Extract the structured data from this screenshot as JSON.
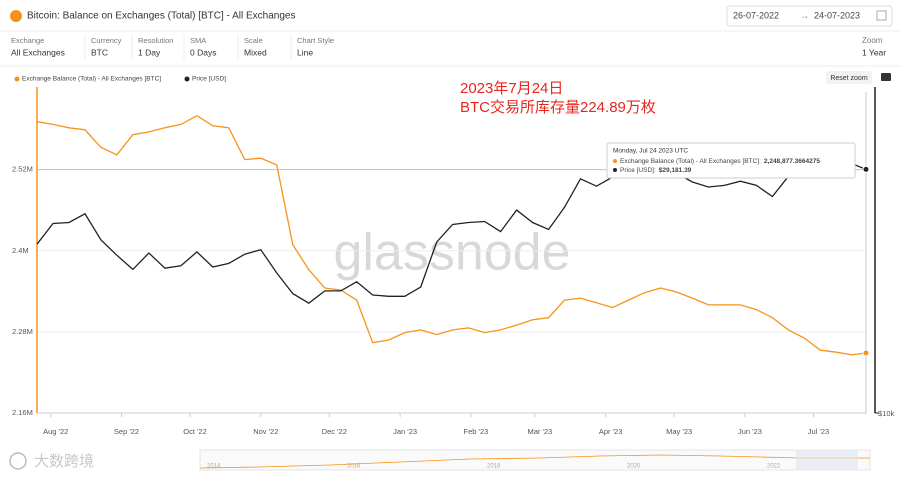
{
  "header": {
    "title": "Bitcoin: Balance on Exchanges (Total) [BTC] - All Exchanges",
    "date_from": "26-07-2022",
    "date_to": "24-07-2023"
  },
  "controls": [
    {
      "label": "Exchange",
      "value": "All Exchanges"
    },
    {
      "label": "Currency",
      "value": "BTC"
    },
    {
      "label": "Resolution",
      "value": "1 Day"
    },
    {
      "label": "SMA",
      "value": "0 Days"
    },
    {
      "label": "Scale",
      "value": "Mixed"
    },
    {
      "label": "Chart Style",
      "value": "Line"
    }
  ],
  "zoom": {
    "label": "Zoom",
    "value": "1 Year"
  },
  "reset_zoom": "Reset zoom",
  "watermark": "glassnode",
  "logo": "大数跨境",
  "navigator_years": [
    "2014",
    "2016",
    "2018",
    "2020",
    "2022"
  ],
  "chart_data": {
    "type": "line",
    "annotations": [
      "2023年7月24日",
      "BTC交易所库存量224.89万枚"
    ],
    "x": [
      "2022-07-26",
      "2022-08-02",
      "2022-08-09",
      "2022-08-16",
      "2022-08-23",
      "2022-08-30",
      "2022-09-06",
      "2022-09-13",
      "2022-09-20",
      "2022-09-27",
      "2022-10-04",
      "2022-10-11",
      "2022-10-18",
      "2022-10-25",
      "2022-11-01",
      "2022-11-08",
      "2022-11-15",
      "2022-11-22",
      "2022-11-29",
      "2022-12-06",
      "2022-12-13",
      "2022-12-20",
      "2022-12-27",
      "2023-01-03",
      "2023-01-10",
      "2023-01-17",
      "2023-01-24",
      "2023-01-31",
      "2023-02-07",
      "2023-02-14",
      "2023-02-21",
      "2023-02-28",
      "2023-03-07",
      "2023-03-14",
      "2023-03-21",
      "2023-03-28",
      "2023-04-04",
      "2023-04-11",
      "2023-04-18",
      "2023-04-25",
      "2023-05-02",
      "2023-05-09",
      "2023-05-16",
      "2023-05-23",
      "2023-05-30",
      "2023-06-06",
      "2023-06-13",
      "2023-06-20",
      "2023-06-27",
      "2023-07-04",
      "2023-07-11",
      "2023-07-18",
      "2023-07-24"
    ],
    "series": [
      {
        "name": "Exchange Balance (Total) - All Exchanges [BTC]",
        "color": "#f7931a",
        "axis": "y",
        "values": [
          2591000,
          2587000,
          2582000,
          2579000,
          2553000,
          2542000,
          2572000,
          2576000,
          2582000,
          2587000,
          2600000,
          2585000,
          2582000,
          2535000,
          2537000,
          2527000,
          2409000,
          2372000,
          2345000,
          2342000,
          2327000,
          2264000,
          2268000,
          2279000,
          2283000,
          2276000,
          2283000,
          2286000,
          2279000,
          2283000,
          2290000,
          2298000,
          2301000,
          2327000,
          2330000,
          2323000,
          2316000,
          2327000,
          2338000,
          2345000,
          2339000,
          2330000,
          2320000,
          2320000,
          2320000,
          2313000,
          2301000,
          2283000,
          2271000,
          2253000,
          2250000,
          2246000,
          2248877.3664275
        ],
        "value_labels": [
          null,
          null,
          null,
          null,
          null,
          null,
          null,
          null,
          null,
          null,
          null,
          null,
          null,
          null,
          null,
          null,
          null,
          null,
          null,
          null,
          null,
          null,
          null,
          null,
          null,
          null,
          null,
          null,
          null,
          null,
          null,
          null,
          null,
          null,
          null,
          null,
          null,
          null,
          null,
          null,
          null,
          null,
          null,
          null,
          null,
          null,
          null,
          null,
          null,
          null,
          null,
          null,
          "2,248,877.3664275"
        ]
      },
      {
        "name": "Price [USD]",
        "color": "#222222",
        "axis": "y2",
        "values": [
          21000,
          23000,
          23100,
          24000,
          21400,
          20000,
          18800,
          20200,
          18900,
          19100,
          20300,
          19000,
          19300,
          20100,
          20500,
          18500,
          16900,
          16200,
          17100,
          17100,
          17800,
          16800,
          16700,
          16700,
          17400,
          21200,
          22900,
          23100,
          23200,
          22200,
          24400,
          23100,
          22400,
          24700,
          28000,
          27100,
          28200,
          30200,
          29400,
          28300,
          28700,
          27600,
          27000,
          27200,
          27700,
          27200,
          25900,
          28300,
          30700,
          30800,
          30600,
          29900,
          29181.39
        ],
        "value_labels": [
          null,
          null,
          null,
          null,
          null,
          null,
          null,
          null,
          null,
          null,
          null,
          null,
          null,
          null,
          null,
          null,
          null,
          null,
          null,
          null,
          null,
          null,
          null,
          null,
          null,
          null,
          null,
          null,
          null,
          null,
          null,
          null,
          null,
          null,
          null,
          null,
          null,
          null,
          null,
          null,
          null,
          null,
          null,
          null,
          null,
          null,
          null,
          null,
          null,
          null,
          null,
          null,
          "$29,181.39"
        ]
      }
    ],
    "tooltip": {
      "date": "Monday, Jul 24 2023 UTC",
      "labels": [
        "Exchange Balance (Total) - All Exchanges [BTC]:",
        "Price [USD]:"
      ]
    },
    "xlim": [
      "2022-07-26",
      "2023-07-24"
    ],
    "xticks": [
      {
        "value": "2022-08-01",
        "label": "Aug '22"
      },
      {
        "value": "2022-09-01",
        "label": "Sep '22"
      },
      {
        "value": "2022-10-01",
        "label": "Oct '22"
      },
      {
        "value": "2022-11-01",
        "label": "Nov '22"
      },
      {
        "value": "2022-12-01",
        "label": "Dec '22"
      },
      {
        "value": "2023-01-01",
        "label": "Jan '23"
      },
      {
        "value": "2023-02-01",
        "label": "Feb '23"
      },
      {
        "value": "2023-03-01",
        "label": "Mar '23"
      },
      {
        "value": "2023-04-01",
        "label": "Apr '23"
      },
      {
        "value": "2023-05-01",
        "label": "May '23"
      },
      {
        "value": "2023-06-01",
        "label": "Jun '23"
      },
      {
        "value": "2023-07-01",
        "label": "Jul '23"
      }
    ],
    "ylim": [
      2160000,
      2635000
    ],
    "yticks": [
      {
        "value": 2160000,
        "label": "2.16M"
      },
      {
        "value": 2280000,
        "label": "2.28M"
      },
      {
        "value": 2400000,
        "label": "2.4M"
      },
      {
        "value": 2520000,
        "label": "2.52M"
      }
    ],
    "y2lim": [
      10000,
      41000
    ],
    "y2ticks": [
      {
        "value": 10000,
        "label": "$10k"
      }
    ],
    "y2log": true,
    "grid": true,
    "legend": "top-left"
  }
}
